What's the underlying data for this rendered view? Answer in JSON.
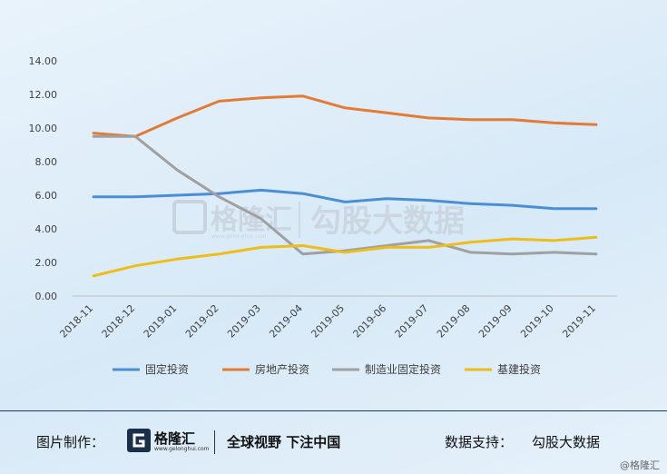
{
  "chart_data": {
    "type": "line",
    "categories": [
      "2018-11",
      "2018-12",
      "2019-01",
      "2019-02",
      "2019-03",
      "2019-04",
      "2019-05",
      "2019-06",
      "2019-07",
      "2019-08",
      "2019-09",
      "2019-10",
      "2019-11"
    ],
    "ylim": [
      0,
      14
    ],
    "yticks": [
      "0.00",
      "2.00",
      "4.00",
      "6.00",
      "8.00",
      "10.00",
      "12.00",
      "14.00"
    ],
    "grid": false,
    "legend_position": "bottom",
    "series": [
      {
        "name": "固定投资",
        "color": "#4a8fd4",
        "values": [
          5.9,
          5.9,
          6.0,
          6.1,
          6.3,
          6.1,
          5.6,
          5.8,
          5.7,
          5.5,
          5.4,
          5.2,
          5.2
        ]
      },
      {
        "name": "房地产投资",
        "color": "#e27b35",
        "values": [
          9.7,
          9.5,
          10.6,
          11.6,
          11.8,
          11.9,
          11.2,
          10.9,
          10.6,
          10.5,
          10.5,
          10.3,
          10.2
        ]
      },
      {
        "name": "制造业固定投资",
        "color": "#a0a0a0",
        "values": [
          9.5,
          9.5,
          7.5,
          5.9,
          4.6,
          2.5,
          2.7,
          3.0,
          3.3,
          2.6,
          2.5,
          2.6,
          2.5
        ]
      },
      {
        "name": "基建投资",
        "color": "#edbd1a",
        "values": [
          1.2,
          1.8,
          2.2,
          2.5,
          2.9,
          3.0,
          2.6,
          2.9,
          2.9,
          3.2,
          3.4,
          3.3,
          3.5
        ]
      }
    ]
  },
  "watermark": {
    "brand": "格隆汇",
    "brand_sub": "www.gelonghui.com",
    "text": "勾股大数据"
  },
  "footer": {
    "made_label": "图片制作：",
    "logo_name": "格隆汇",
    "logo_sub": "www.gelonghui.com",
    "slogan": "全球视野 下注中国",
    "support_label": "数据支持：",
    "support_value": "勾股大数据",
    "corner": "@格隆汇"
  }
}
